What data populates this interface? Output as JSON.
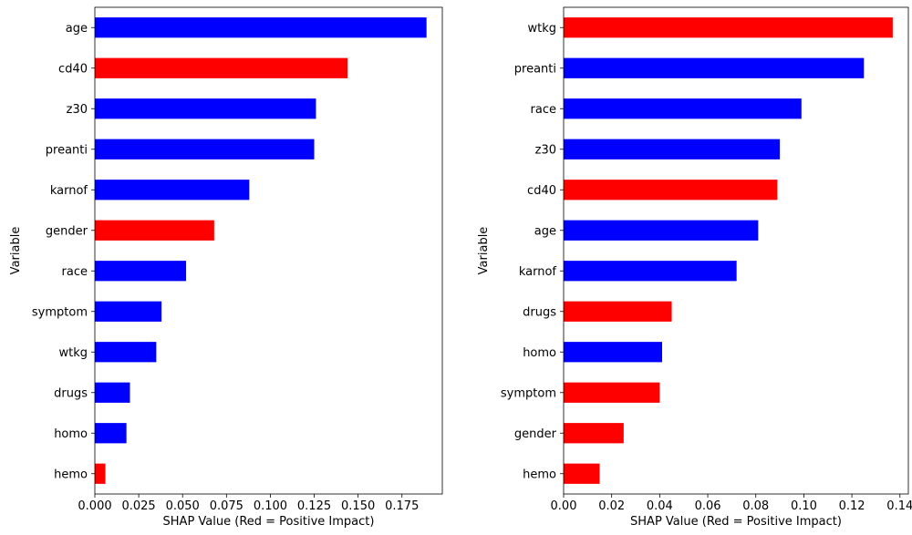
{
  "colors": {
    "positive": "#ff0000",
    "negative": "#0000ff"
  },
  "chart_data": [
    {
      "type": "bar",
      "orientation": "horizontal",
      "xlabel": "SHAP Value (Red = Positive Impact)",
      "ylabel": "Variable",
      "xlim": [
        0,
        0.198
      ],
      "xticks": [
        "0.000",
        "0.025",
        "0.050",
        "0.075",
        "0.100",
        "0.125",
        "0.150",
        "0.175"
      ],
      "xtick_values": [
        0,
        0.025,
        0.05,
        0.075,
        0.1,
        0.125,
        0.15,
        0.175
      ],
      "grid": false,
      "categories": [
        "age",
        "cd40",
        "z30",
        "preanti",
        "karnof",
        "gender",
        "race",
        "symptom",
        "wtkg",
        "drugs",
        "homo",
        "hemo"
      ],
      "values": [
        0.189,
        0.144,
        0.126,
        0.125,
        0.088,
        0.068,
        0.052,
        0.038,
        0.035,
        0.02,
        0.018,
        0.006
      ],
      "positive_impact": [
        false,
        true,
        false,
        false,
        false,
        true,
        false,
        false,
        false,
        false,
        false,
        true
      ]
    },
    {
      "type": "bar",
      "orientation": "horizontal",
      "xlabel": "SHAP Value (Red = Positive Impact)",
      "ylabel": "Variable",
      "xlim": [
        0,
        0.1435
      ],
      "xticks": [
        "0.00",
        "0.02",
        "0.04",
        "0.06",
        "0.08",
        "0.10",
        "0.12",
        "0.14"
      ],
      "xtick_values": [
        0,
        0.02,
        0.04,
        0.06,
        0.08,
        0.1,
        0.12,
        0.14
      ],
      "grid": false,
      "categories": [
        "wtkg",
        "preanti",
        "race",
        "z30",
        "cd40",
        "age",
        "karnof",
        "drugs",
        "homo",
        "symptom",
        "gender",
        "hemo"
      ],
      "values": [
        0.137,
        0.125,
        0.099,
        0.09,
        0.089,
        0.081,
        0.072,
        0.045,
        0.041,
        0.04,
        0.025,
        0.015
      ],
      "positive_impact": [
        true,
        false,
        false,
        false,
        true,
        false,
        false,
        true,
        false,
        true,
        true,
        true
      ]
    }
  ]
}
